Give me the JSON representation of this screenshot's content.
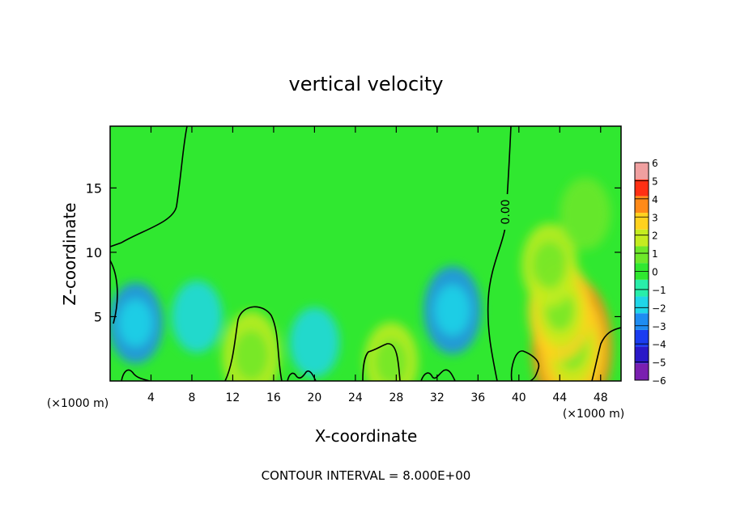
{
  "chart_data": {
    "type": "heatmap",
    "title": "vertical velocity",
    "xlabel": "X-coordinate",
    "ylabel": "Z-coordinate",
    "x_unit": "(×1000 m)",
    "x_unit_right": "(×1000 m)",
    "xlim": [
      0,
      50
    ],
    "ylim": [
      0,
      19.8
    ],
    "x_ticks": [
      4,
      8,
      12,
      16,
      20,
      24,
      28,
      32,
      36,
      40,
      44,
      48
    ],
    "y_ticks": [
      5,
      10,
      15
    ],
    "contour_label": "0.00",
    "contour_interval_text": "CONTOUR INTERVAL = 8.000E+00",
    "colorbar": {
      "levels": [
        -6,
        -5,
        -4,
        -3,
        -2,
        -1,
        0,
        1,
        2,
        3,
        4,
        5,
        6
      ],
      "labels": [
        "6",
        "5",
        "4",
        "3",
        "2",
        "1",
        "0",
        "−1",
        "−2",
        "−3",
        "−4",
        "−5",
        "−6"
      ],
      "colors": [
        "#7a1fb0",
        "#2a18c8",
        "#1a3cf0",
        "#1e8cf2",
        "#20d6e8",
        "#28eeaa",
        "#30e830",
        "#6ee82a",
        "#c4ec20",
        "#ffd21e",
        "#ff8a18",
        "#ff3014",
        "#f0a0a0"
      ]
    },
    "features": [
      {
        "x": 45.2,
        "z": 2.6,
        "value": 4.0
      },
      {
        "x": 44.0,
        "z": 5.5,
        "value": 2.2
      },
      {
        "x": 43.0,
        "z": 9.0,
        "value": 1.4
      },
      {
        "x": 46.5,
        "z": 13.0,
        "value": 0.9
      },
      {
        "x": 13.8,
        "z": 2.0,
        "value": 1.6
      },
      {
        "x": 27.5,
        "z": 1.5,
        "value": 1.2
      },
      {
        "x": 33.5,
        "z": 5.5,
        "value": -1.6
      },
      {
        "x": 2.5,
        "z": 4.5,
        "value": -1.3
      },
      {
        "x": 8.5,
        "z": 5.0,
        "value": -0.9
      },
      {
        "x": 20.0,
        "z": 3.0,
        "value": -0.8
      }
    ]
  }
}
